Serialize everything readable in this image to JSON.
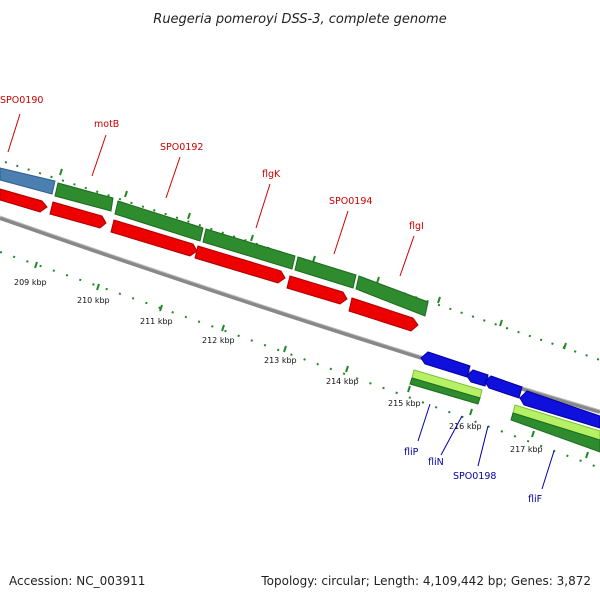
{
  "title": "Ruegeria pomeroyi DSS-3, complete genome",
  "footer": {
    "accession": "Accession: NC_003911",
    "topology": "Topology: circular; Length: 4,109,442 bp; Genes: 3,872"
  },
  "colors": {
    "label_forward": "#cc0000",
    "label_reverse": "#0000aa",
    "gene_green": "#2e8b2e",
    "gene_red": "#ee0000",
    "gene_blue": "#1010dd",
    "gene_lightgreen": "#b6f064",
    "gene_steelblue": "#4b7fb0",
    "backbone": "#888888",
    "ticks": "#228822"
  },
  "kbp_ticks": [
    "209 kbp",
    "210 kbp",
    "211 kbp",
    "212 kbp",
    "213 kbp",
    "214 kbp",
    "215 kbp",
    "216 kbp",
    "217 kbp"
  ],
  "gene_labels": [
    {
      "name": "SPO0190",
      "strand": "forward"
    },
    {
      "name": "motB",
      "strand": "forward"
    },
    {
      "name": "SPO0192",
      "strand": "forward"
    },
    {
      "name": "flgK",
      "strand": "forward"
    },
    {
      "name": "SPO0194",
      "strand": "forward"
    },
    {
      "name": "flgI",
      "strand": "forward"
    },
    {
      "name": "fliP",
      "strand": "reverse"
    },
    {
      "name": "fliN",
      "strand": "reverse"
    },
    {
      "name": "SPO0198",
      "strand": "reverse"
    },
    {
      "name": "fliF",
      "strand": "reverse"
    }
  ]
}
